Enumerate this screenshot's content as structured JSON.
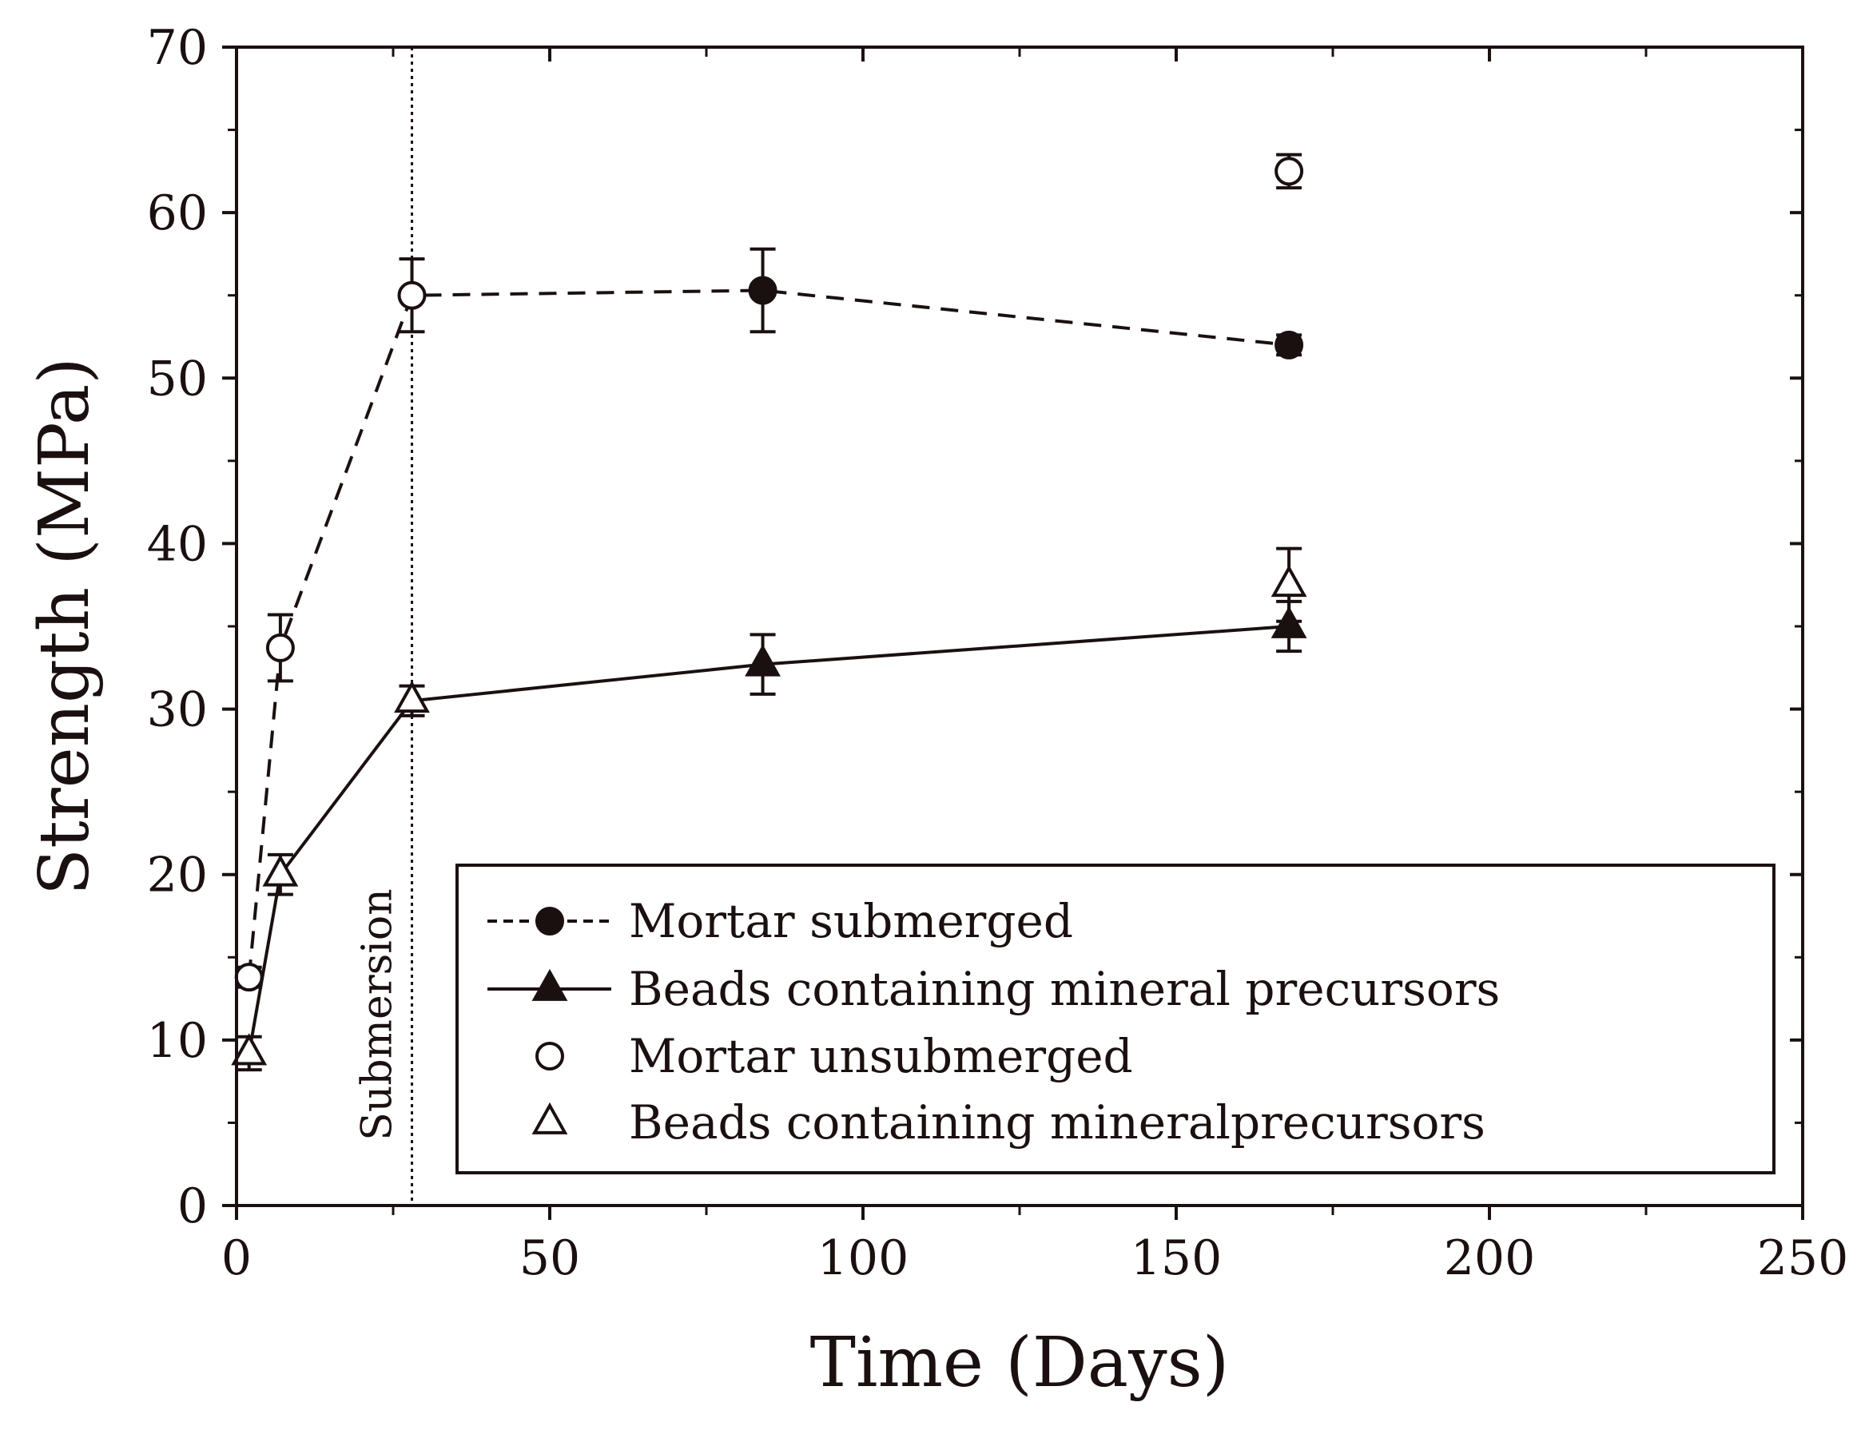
{
  "chart_data": {
    "type": "scatter",
    "title": "",
    "xlabel": "Time (Days)",
    "ylabel": "Strength (MPa)",
    "xlim": [
      0,
      250
    ],
    "ylim": [
      0,
      70
    ],
    "xticks": [
      0,
      50,
      100,
      150,
      200,
      250
    ],
    "yticks": [
      0,
      10,
      20,
      30,
      40,
      50,
      60,
      70
    ],
    "x_minor_step": 25,
    "y_minor_step": 5,
    "grid": false,
    "legend_position": "bottom-right",
    "annotations": [
      {
        "type": "vertical-line",
        "x": 28,
        "style": "dotted",
        "label": "Submersion"
      }
    ],
    "series": [
      {
        "name": "Mortar submerged",
        "marker": "filled-circle",
        "line": "dashed",
        "x": [
          2,
          7,
          28,
          84,
          168
        ],
        "y": [
          13.8,
          33.7,
          55.0,
          55.3,
          52.0
        ],
        "err": [
          0.6,
          2.0,
          2.2,
          2.5,
          0.6
        ],
        "marker_x": [
          84,
          168
        ],
        "marker_y": [
          55.3,
          52.0
        ],
        "marker_err": [
          2.5,
          0.6
        ]
      },
      {
        "name": "Beads containing mineral precursors",
        "marker": "filled-triangle",
        "line": "solid",
        "x": [
          2,
          7,
          28,
          84,
          168
        ],
        "y": [
          9.2,
          20.0,
          30.5,
          32.7,
          35.0
        ],
        "err": [
          1.0,
          1.2,
          0.9,
          1.8,
          1.5
        ],
        "marker_x": [
          84,
          168
        ],
        "marker_y": [
          32.7,
          35.0
        ],
        "marker_err": [
          1.8,
          1.5
        ]
      },
      {
        "name": "Mortar unsubmerged",
        "marker": "open-circle",
        "line": "none",
        "x": [
          2,
          7,
          28,
          168
        ],
        "y": [
          13.8,
          33.7,
          55.0,
          62.5
        ],
        "err": [
          0.6,
          2.0,
          2.2,
          1.0
        ]
      },
      {
        "name": "Beads containing mineralprecursors",
        "marker": "open-triangle",
        "line": "none",
        "x": [
          2,
          7,
          28,
          168
        ],
        "y": [
          9.2,
          20.0,
          30.5,
          37.5
        ],
        "err": [
          1.0,
          1.2,
          0.9,
          2.2
        ]
      }
    ]
  },
  "colors": {
    "ink": "#1b1010",
    "background": "#ffffff"
  }
}
